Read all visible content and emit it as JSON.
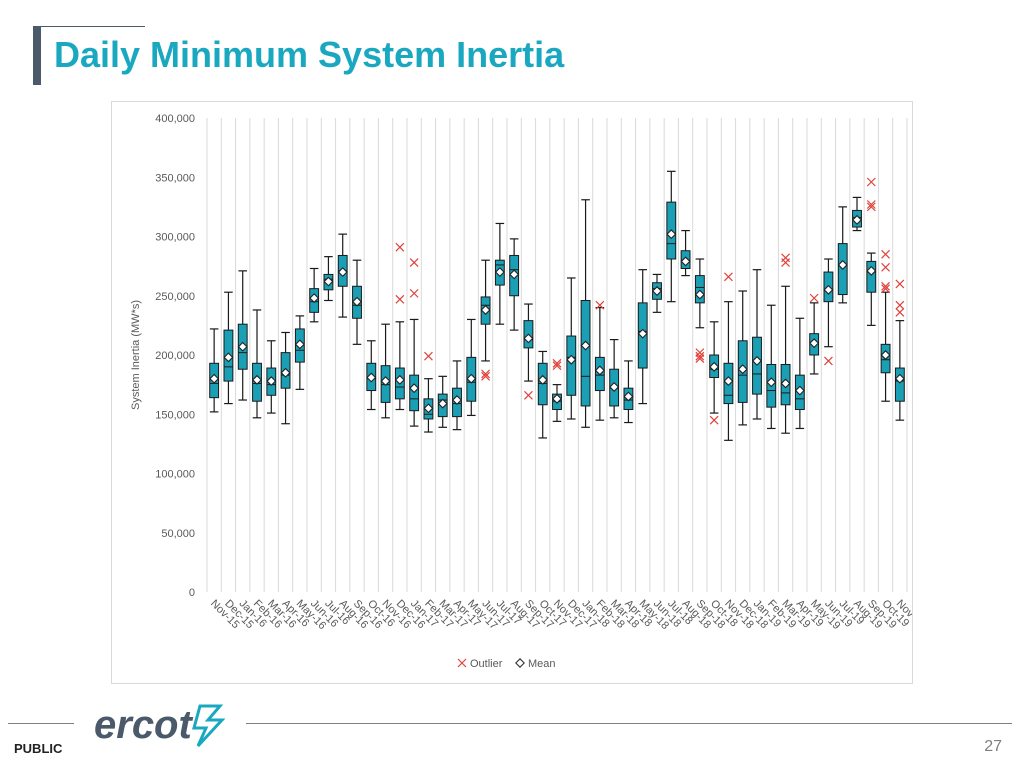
{
  "slide": {
    "title": "Daily Minimum System Inertia",
    "classification": "PUBLIC",
    "page_number": "27",
    "logo_text": "ercot"
  },
  "chart_data": {
    "type": "box",
    "ylabel": "System Inertia (MW*s)",
    "xlabel": "",
    "ylim": [
      0,
      400000
    ],
    "yticks": [
      0,
      50000,
      100000,
      150000,
      200000,
      250000,
      300000,
      350000,
      400000
    ],
    "ytick_labels": [
      "0",
      "50,000",
      "100,000",
      "150,000",
      "200,000",
      "250,000",
      "300,000",
      "350,000",
      "400,000"
    ],
    "grid": "vertical",
    "legend_position": "bottom",
    "legend": [
      {
        "name": "Outlier",
        "marker": "x",
        "color": "#e0413a"
      },
      {
        "name": "Mean",
        "marker": "diamond",
        "color": "#333333"
      }
    ],
    "box_color": "#1a9fb5",
    "categories": [
      "Nov-15",
      "Dec-15",
      "Jan-16",
      "Feb-16",
      "Mar-16",
      "Apr-16",
      "May-16",
      "Jun-16",
      "Jul-16",
      "Aug-16",
      "Sep-16",
      "Oct-16",
      "Nov-16",
      "Dec-16",
      "Jan-17",
      "Feb-17",
      "Mar-17",
      "Apr-17",
      "May-17",
      "Jun-17",
      "Jul-17",
      "Aug-17",
      "Sep-17",
      "Oct-17",
      "Nov-17",
      "Dec-17",
      "Jan-18",
      "Feb-18",
      "Mar-18",
      "Apr-18",
      "May-18",
      "Jun-18",
      "Jul-18",
      "Aug-18",
      "Sep-18",
      "Oct-18",
      "Nov-18",
      "Dec-18",
      "Jan-19",
      "Feb-19",
      "Mar-19",
      "Apr-19",
      "May-19",
      "Jun-19",
      "Jul-19",
      "Aug-19",
      "Sep-19",
      "Oct-19",
      "Nov-19"
    ],
    "stats": [
      {
        "min": 152000,
        "q1": 164000,
        "median": 176000,
        "q3": 193000,
        "max": 222000,
        "mean": 180000,
        "outliers": []
      },
      {
        "min": 159000,
        "q1": 178000,
        "median": 190000,
        "q3": 221000,
        "max": 253000,
        "mean": 198000,
        "outliers": []
      },
      {
        "min": 162000,
        "q1": 188000,
        "median": 202000,
        "q3": 226000,
        "max": 271000,
        "mean": 207000,
        "outliers": []
      },
      {
        "min": 147000,
        "q1": 161000,
        "median": 176000,
        "q3": 193000,
        "max": 238000,
        "mean": 179000,
        "outliers": []
      },
      {
        "min": 151000,
        "q1": 166000,
        "median": 175000,
        "q3": 189000,
        "max": 212000,
        "mean": 178000,
        "outliers": []
      },
      {
        "min": 142000,
        "q1": 172000,
        "median": 183000,
        "q3": 202000,
        "max": 219000,
        "mean": 185000,
        "outliers": []
      },
      {
        "min": 171000,
        "q1": 194000,
        "median": 204000,
        "q3": 222000,
        "max": 233000,
        "mean": 209000,
        "outliers": []
      },
      {
        "min": 228000,
        "q1": 236000,
        "median": 245000,
        "q3": 256000,
        "max": 273000,
        "mean": 248000,
        "outliers": []
      },
      {
        "min": 246000,
        "q1": 255000,
        "median": 264000,
        "q3": 268000,
        "max": 283000,
        "mean": 262000,
        "outliers": []
      },
      {
        "min": 232000,
        "q1": 258000,
        "median": 271000,
        "q3": 284000,
        "max": 302000,
        "mean": 270000,
        "outliers": []
      },
      {
        "min": 209000,
        "q1": 231000,
        "median": 242000,
        "q3": 258000,
        "max": 280000,
        "mean": 245000,
        "outliers": []
      },
      {
        "min": 154000,
        "q1": 170000,
        "median": 180000,
        "q3": 193000,
        "max": 212000,
        "mean": 181000,
        "outliers": []
      },
      {
        "min": 147000,
        "q1": 160000,
        "median": 175000,
        "q3": 191000,
        "max": 226000,
        "mean": 178000,
        "outliers": []
      },
      {
        "min": 154000,
        "q1": 163000,
        "median": 173000,
        "q3": 189000,
        "max": 228000,
        "mean": 179000,
        "outliers": [
          291000,
          247000
        ]
      },
      {
        "min": 140000,
        "q1": 153000,
        "median": 163000,
        "q3": 183000,
        "max": 230000,
        "mean": 172000,
        "outliers": [
          278000,
          252000
        ]
      },
      {
        "min": 135000,
        "q1": 146000,
        "median": 150000,
        "q3": 163000,
        "max": 180000,
        "mean": 155000,
        "outliers": [
          199000
        ]
      },
      {
        "min": 139000,
        "q1": 148000,
        "median": 162000,
        "q3": 167000,
        "max": 182000,
        "mean": 159000,
        "outliers": []
      },
      {
        "min": 137000,
        "q1": 148000,
        "median": 159000,
        "q3": 172000,
        "max": 195000,
        "mean": 162000,
        "outliers": []
      },
      {
        "min": 149000,
        "q1": 161000,
        "median": 177000,
        "q3": 198000,
        "max": 230000,
        "mean": 180000,
        "outliers": []
      },
      {
        "min": 195000,
        "q1": 226000,
        "median": 242000,
        "q3": 249000,
        "max": 280000,
        "mean": 238000,
        "outliers": [
          184000,
          182000
        ]
      },
      {
        "min": 226000,
        "q1": 259000,
        "median": 276000,
        "q3": 280000,
        "max": 311000,
        "mean": 270000,
        "outliers": []
      },
      {
        "min": 221000,
        "q1": 250000,
        "median": 272000,
        "q3": 284000,
        "max": 298000,
        "mean": 268000,
        "outliers": []
      },
      {
        "min": 178000,
        "q1": 206000,
        "median": 213000,
        "q3": 229000,
        "max": 243000,
        "mean": 214000,
        "outliers": [
          166000
        ]
      },
      {
        "min": 130000,
        "q1": 158000,
        "median": 176000,
        "q3": 193000,
        "max": 203000,
        "mean": 179000,
        "outliers": []
      },
      {
        "min": 144000,
        "q1": 154000,
        "median": 161000,
        "q3": 167000,
        "max": 175000,
        "mean": 163000,
        "outliers": [
          193000,
          191000
        ]
      },
      {
        "min": 146000,
        "q1": 166000,
        "median": 198000,
        "q3": 216000,
        "max": 265000,
        "mean": 196000,
        "outliers": []
      },
      {
        "min": 139000,
        "q1": 157000,
        "median": 182000,
        "q3": 246000,
        "max": 331000,
        "mean": 208000,
        "outliers": []
      },
      {
        "min": 145000,
        "q1": 170000,
        "median": 183000,
        "q3": 198000,
        "max": 240000,
        "mean": 187000,
        "outliers": [
          242000
        ]
      },
      {
        "min": 147000,
        "q1": 157000,
        "median": 172000,
        "q3": 188000,
        "max": 213000,
        "mean": 173000,
        "outliers": []
      },
      {
        "min": 143000,
        "q1": 154000,
        "median": 162000,
        "q3": 172000,
        "max": 195000,
        "mean": 165000,
        "outliers": []
      },
      {
        "min": 159000,
        "q1": 189000,
        "median": 220000,
        "q3": 244000,
        "max": 272000,
        "mean": 218000,
        "outliers": []
      },
      {
        "min": 236000,
        "q1": 247000,
        "median": 256000,
        "q3": 261000,
        "max": 268000,
        "mean": 254000,
        "outliers": []
      },
      {
        "min": 245000,
        "q1": 281000,
        "median": 294000,
        "q3": 329000,
        "max": 355000,
        "mean": 302000,
        "outliers": []
      },
      {
        "min": 267000,
        "q1": 273000,
        "median": 280000,
        "q3": 288000,
        "max": 305000,
        "mean": 279000,
        "outliers": []
      },
      {
        "min": 223000,
        "q1": 244000,
        "median": 257000,
        "q3": 267000,
        "max": 281000,
        "mean": 251000,
        "outliers": [
          202000,
          199000,
          197000
        ]
      },
      {
        "min": 151000,
        "q1": 181000,
        "median": 188000,
        "q3": 200000,
        "max": 228000,
        "mean": 190000,
        "outliers": [
          145000
        ]
      },
      {
        "min": 128000,
        "q1": 159000,
        "median": 166000,
        "q3": 193000,
        "max": 245000,
        "mean": 178000,
        "outliers": [
          266000
        ]
      },
      {
        "min": 141000,
        "q1": 160000,
        "median": 183000,
        "q3": 212000,
        "max": 254000,
        "mean": 188000,
        "outliers": []
      },
      {
        "min": 146000,
        "q1": 167000,
        "median": 184000,
        "q3": 215000,
        "max": 272000,
        "mean": 195000,
        "outliers": []
      },
      {
        "min": 138000,
        "q1": 156000,
        "median": 170000,
        "q3": 192000,
        "max": 242000,
        "mean": 177000,
        "outliers": []
      },
      {
        "min": 134000,
        "q1": 158000,
        "median": 168000,
        "q3": 192000,
        "max": 258000,
        "mean": 176000,
        "outliers": [
          282000,
          278000
        ]
      },
      {
        "min": 138000,
        "q1": 154000,
        "median": 163000,
        "q3": 183000,
        "max": 231000,
        "mean": 170000,
        "outliers": []
      },
      {
        "min": 184000,
        "q1": 200000,
        "median": 210000,
        "q3": 218000,
        "max": 244000,
        "mean": 210000,
        "outliers": [
          248000
        ]
      },
      {
        "min": 207000,
        "q1": 245000,
        "median": 255000,
        "q3": 270000,
        "max": 281000,
        "mean": 255000,
        "outliers": [
          195000
        ]
      },
      {
        "min": 244000,
        "q1": 251000,
        "median": 276000,
        "q3": 294000,
        "max": 325000,
        "mean": 276000,
        "outliers": []
      },
      {
        "min": 305000,
        "q1": 308000,
        "median": 316000,
        "q3": 322000,
        "max": 333000,
        "mean": 314000,
        "outliers": []
      },
      {
        "min": 225000,
        "q1": 253000,
        "median": 270000,
        "q3": 279000,
        "max": 286000,
        "mean": 271000,
        "outliers": [
          346000,
          327000,
          325000
        ]
      },
      {
        "min": 161000,
        "q1": 185000,
        "median": 196000,
        "q3": 209000,
        "max": 253000,
        "mean": 200000,
        "outliers": [
          285000,
          274000,
          258000,
          256000
        ]
      },
      {
        "min": 145000,
        "q1": 161000,
        "median": 178000,
        "q3": 189000,
        "max": 229000,
        "mean": 180000,
        "outliers": [
          260000,
          242000,
          236000
        ]
      }
    ]
  }
}
